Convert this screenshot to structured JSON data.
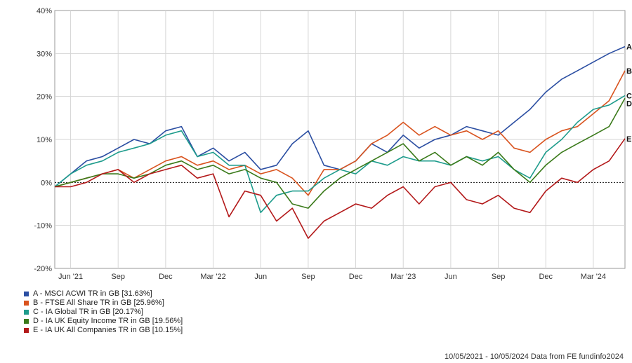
{
  "chart_data": {
    "type": "line",
    "title": "",
    "xlabel": "",
    "ylabel": "",
    "ylim": [
      -20,
      40
    ],
    "y_ticks": [
      "40%",
      "30%",
      "20%",
      "10%",
      "0%",
      "-10%",
      "-20%"
    ],
    "y_tick_values": [
      40,
      30,
      20,
      10,
      0,
      -10,
      -20
    ],
    "x_ticks": [
      "Jun '21",
      "Sep",
      "Dec",
      "Mar '22",
      "Jun",
      "Sep",
      "Dec",
      "Mar '23",
      "Jun",
      "Sep",
      "Dec",
      "Mar '24"
    ],
    "x_tick_months": [
      1,
      4,
      7,
      10,
      13,
      16,
      19,
      22,
      25,
      28,
      31,
      34
    ],
    "x_range_months": [
      0,
      36
    ],
    "grid": true,
    "zero_line": "dotted",
    "legend_position": "bottom-left",
    "series": [
      {
        "letter": "A",
        "name": "A - MSCI ACWI TR in GB [31.63%]",
        "color": "#2b4ea2",
        "months": [
          0,
          1,
          2,
          3,
          4,
          5,
          6,
          7,
          8,
          9,
          10,
          11,
          12,
          13,
          14,
          15,
          16,
          17,
          18,
          19,
          20,
          21,
          22,
          23,
          24,
          25,
          26,
          27,
          28,
          29,
          30,
          31,
          32,
          33,
          34,
          35,
          36
        ],
        "values": [
          -1,
          2,
          5,
          6,
          8,
          10,
          9,
          12,
          13,
          6,
          8,
          5,
          7,
          3,
          4,
          9,
          12,
          4,
          3,
          5,
          9,
          7,
          11,
          8,
          10,
          11,
          13,
          12,
          11,
          14,
          17,
          21,
          24,
          26,
          28,
          30,
          31.6
        ]
      },
      {
        "letter": "B",
        "name": "B - FTSE All Share TR in GB [25.96%]",
        "color": "#d9531e",
        "months": [
          0,
          1,
          2,
          3,
          4,
          5,
          6,
          7,
          8,
          9,
          10,
          11,
          12,
          13,
          14,
          15,
          16,
          17,
          18,
          19,
          20,
          21,
          22,
          23,
          24,
          25,
          26,
          27,
          28,
          29,
          30,
          31,
          32,
          33,
          34,
          35,
          36
        ],
        "values": [
          -1,
          0,
          1,
          2,
          3,
          1,
          3,
          5,
          6,
          4,
          5,
          3,
          4,
          2,
          3,
          1,
          -3,
          3,
          3,
          5,
          9,
          11,
          14,
          11,
          13,
          11,
          12,
          10,
          12,
          8,
          7,
          10,
          12,
          13,
          16,
          19,
          26
        ]
      },
      {
        "letter": "C",
        "name": "C - IA Global TR in GB [20.17%]",
        "color": "#1e9c8c",
        "months": [
          0,
          1,
          2,
          3,
          4,
          5,
          6,
          7,
          8,
          9,
          10,
          11,
          12,
          13,
          14,
          15,
          16,
          17,
          18,
          19,
          20,
          21,
          22,
          23,
          24,
          25,
          26,
          27,
          28,
          29,
          30,
          31,
          32,
          33,
          34,
          35,
          36
        ],
        "values": [
          -1,
          2,
          4,
          5,
          7,
          8,
          9,
          11,
          12,
          6,
          7,
          4,
          4,
          -7,
          -3,
          -2,
          -2,
          1,
          3,
          2,
          5,
          4,
          6,
          5,
          5,
          4,
          6,
          5,
          6,
          3,
          1,
          7,
          10,
          14,
          17,
          18,
          20.2
        ]
      },
      {
        "letter": "D",
        "name": "D - IA UK Equity Income TR in GB [19.56%]",
        "color": "#3a7a1a",
        "months": [
          0,
          1,
          2,
          3,
          4,
          5,
          6,
          7,
          8,
          9,
          10,
          11,
          12,
          13,
          14,
          15,
          16,
          17,
          18,
          19,
          20,
          21,
          22,
          23,
          24,
          25,
          26,
          27,
          28,
          29,
          30,
          31,
          32,
          33,
          34,
          35,
          36
        ],
        "values": [
          -1,
          0,
          1,
          2,
          2,
          1,
          2,
          4,
          5,
          3,
          4,
          2,
          3,
          1,
          0,
          -5,
          -6,
          -2,
          1,
          3,
          5,
          7,
          9,
          5,
          7,
          4,
          6,
          4,
          7,
          3,
          0,
          4,
          7,
          9,
          11,
          13,
          19.6
        ]
      },
      {
        "letter": "E",
        "name": "E - IA UK All Companies TR in GB [10.15%]",
        "color": "#b3191a",
        "months": [
          0,
          1,
          2,
          3,
          4,
          5,
          6,
          7,
          8,
          9,
          10,
          11,
          12,
          13,
          14,
          15,
          16,
          17,
          18,
          19,
          20,
          21,
          22,
          23,
          24,
          25,
          26,
          27,
          28,
          29,
          30,
          31,
          32,
          33,
          34,
          35,
          36
        ],
        "values": [
          -1,
          -1,
          0,
          2,
          3,
          0,
          2,
          3,
          4,
          1,
          2,
          -8,
          -2,
          -3,
          -9,
          -6,
          -13,
          -9,
          -7,
          -5,
          -6,
          -3,
          -1,
          -5,
          -1,
          0,
          -4,
          -5,
          -3,
          -6,
          -7,
          -2,
          1,
          0,
          3,
          5,
          10.2
        ]
      }
    ],
    "footer": "10/05/2021 - 10/05/2024 Data from FE fundinfo2024"
  }
}
